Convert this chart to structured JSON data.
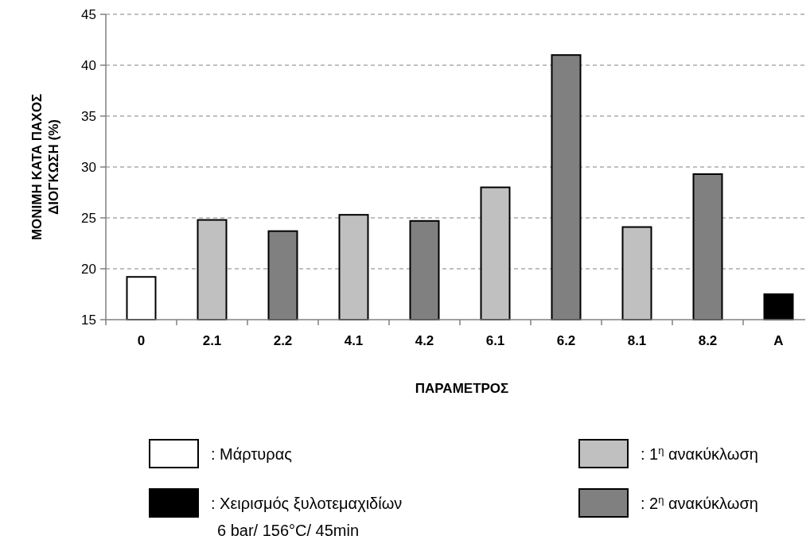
{
  "chart_data": {
    "type": "bar",
    "stacked": true,
    "xlabel": "ΠΑΡΑΜΕΤΡΟΣ",
    "ylabel": "ΜΟΝΙΜΗ ΚΑΤΑ ΠΑΧΟΣ\nΔΙΟΓΚΩΣΗ  (%)",
    "categories": [
      "0",
      "2.1",
      "2.2",
      "4.1",
      "4.2",
      "6.1",
      "6.2",
      "8.1",
      "8.2",
      "A"
    ],
    "series": [
      {
        "name": ": Μάρτυρας",
        "color": "#ffffff",
        "values": [
          19.2,
          null,
          null,
          null,
          null,
          null,
          null,
          null,
          null,
          null
        ]
      },
      {
        "name": ": 1$^{η}$ ανακύκλωση",
        "color": "#c0c0c0",
        "values": [
          null,
          24.8,
          null,
          25.3,
          null,
          28.0,
          null,
          24.1,
          null,
          null
        ]
      },
      {
        "name": ": Χειρισμός ξυλοτεμαχιδίων\n6 bar/ 156°C/ 45min",
        "color": "#000000",
        "values": [
          null,
          null,
          null,
          null,
          null,
          null,
          null,
          null,
          null,
          17.5
        ]
      },
      {
        "name": ": 2$^{η}$ ανακύκλωση",
        "color": "#808080",
        "values": [
          null,
          null,
          23.7,
          null,
          24.7,
          null,
          41.0,
          null,
          29.3,
          null
        ]
      }
    ],
    "ylim": [
      15,
      45
    ],
    "yticks": [
      15,
      20,
      25,
      30,
      35,
      40,
      45
    ],
    "grid": "y",
    "legend": "bottom"
  }
}
